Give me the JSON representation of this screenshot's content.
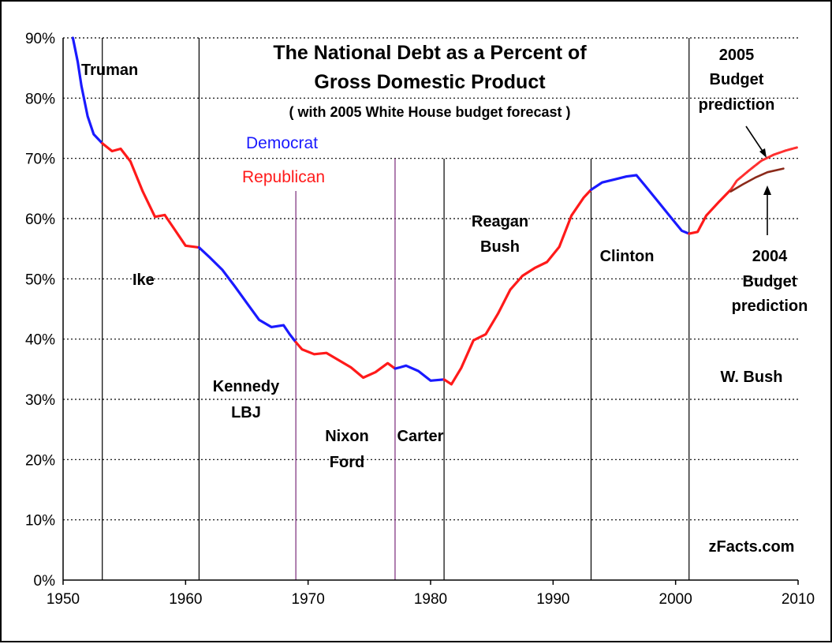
{
  "chart_data": {
    "type": "line",
    "title": "The National Debt as a Percent of",
    "title_line2": "Gross Domestic Product",
    "subtitle": "( with 2005 White House budget forecast )",
    "xlabel": "",
    "ylabel": "",
    "xlim": [
      1950,
      2010
    ],
    "ylim": [
      0,
      90
    ],
    "x_ticks": [
      "1950",
      "1960",
      "1970",
      "1980",
      "1990",
      "2000",
      "2010"
    ],
    "y_ticks": [
      "0%",
      "10%",
      "20%",
      "30%",
      "40%",
      "50%",
      "60%",
      "70%",
      "80%",
      "90%"
    ],
    "grid": "horizontal dotted",
    "legend": {
      "democrat": "Democrat",
      "republican": "Republican"
    },
    "colors": {
      "democrat": "#1a1aff",
      "republican": "#ff1a1a",
      "forecast_2005": "#ff3030",
      "forecast_2004": "#8b2a1a",
      "divider": "#000000",
      "divider_purple": "#7a2a7a"
    },
    "administrations": [
      {
        "name": "Truman",
        "party": "D",
        "start": 1950,
        "end": 1953.2
      },
      {
        "name": "Ike",
        "party": "R",
        "start": 1953.2,
        "end": 1961.1
      },
      {
        "name": "Kennedy LBJ",
        "party": "D",
        "start": 1961.1,
        "end": 1969.0
      },
      {
        "name": "Nixon Ford",
        "party": "R",
        "start": 1969.0,
        "end": 1977.1
      },
      {
        "name": "Carter",
        "party": "D",
        "start": 1977.1,
        "end": 1981.1
      },
      {
        "name": "Reagan Bush",
        "party": "R",
        "start": 1981.1,
        "end": 1993.1
      },
      {
        "name": "Clinton",
        "party": "D",
        "start": 1993.1,
        "end": 2001.1
      },
      {
        "name": "W. Bush",
        "party": "R",
        "start": 2001.1,
        "end": 2004.5
      }
    ],
    "dividers": [
      1953.2,
      1961.1,
      1969.0,
      1977.1,
      1981.1,
      1993.1,
      2001.1
    ],
    "series": [
      {
        "name": "Debt % of GDP",
        "x": [
          1950.8,
          1951.2,
          1951.5,
          1952,
          1952.5,
          1953.2,
          1954,
          1954.7,
          1955.5,
          1956.5,
          1957.5,
          1958.3,
          1959,
          1960,
          1961.1,
          1962,
          1963,
          1964,
          1965,
          1966,
          1967,
          1968,
          1968.5,
          1969.0,
          1969.5,
          1970.5,
          1971.5,
          1972.5,
          1973.5,
          1974.5,
          1975.5,
          1976.5,
          1977.1,
          1977.5,
          1978,
          1979,
          1980,
          1981.1,
          1981.7,
          1982.5,
          1983.5,
          1984.5,
          1985.5,
          1986.5,
          1987.5,
          1988.5,
          1989.5,
          1990.5,
          1991.5,
          1992.5,
          1993.1,
          1994,
          1995,
          1996,
          1996.8,
          1997.5,
          1998.5,
          1999.5,
          2000.5,
          2001.1,
          2001.8,
          2002.5,
          2003.5,
          2004.5
        ],
        "y": [
          90,
          86,
          82,
          77,
          74,
          72.5,
          71.2,
          71.6,
          69.5,
          64.5,
          60.3,
          60.6,
          58.5,
          55.5,
          55.2,
          53.5,
          51.5,
          48.8,
          46,
          43.2,
          42,
          42.3,
          40.8,
          39.5,
          38.3,
          37.5,
          37.7,
          36.5,
          35.3,
          33.6,
          34.5,
          36,
          35.1,
          35.3,
          35.6,
          34.7,
          33.1,
          33.3,
          32.5,
          35.2,
          39.8,
          40.8,
          44.2,
          48.2,
          50.5,
          51.8,
          52.8,
          55.3,
          60.5,
          63.5,
          64.8,
          66,
          66.5,
          67,
          67.2,
          65.5,
          63,
          60.5,
          58,
          57.5,
          57.8,
          60.5,
          62.7,
          64.8
        ]
      },
      {
        "name": "2005 Budget prediction",
        "x": [
          2004.5,
          2005,
          2006,
          2007,
          2008,
          2009,
          2009.9
        ],
        "y": [
          64.8,
          66.3,
          68,
          69.6,
          70.6,
          71.3,
          71.8
        ]
      },
      {
        "name": "2004 Budget prediction",
        "x": [
          2004.5,
          2005.5,
          2006.5,
          2007.5,
          2008.8
        ],
        "y": [
          64.5,
          65.7,
          66.8,
          67.7,
          68.3
        ]
      }
    ],
    "annotations": {
      "truman": "Truman",
      "ike": "Ike",
      "kennedy": "Kennedy",
      "lbj": "LBJ",
      "nixon": "Nixon",
      "ford": "Ford",
      "carter": "Carter",
      "reagan": "Reagan",
      "bush": "Bush",
      "clinton": "Clinton",
      "wbush": "W. Bush",
      "pred2005_year": "2005",
      "pred2005_budget": "Budget",
      "pred2005_prediction": "prediction",
      "pred2004_year": "2004",
      "pred2004_budget": "Budget",
      "pred2004_prediction": "prediction",
      "source": "zFacts.com"
    }
  }
}
